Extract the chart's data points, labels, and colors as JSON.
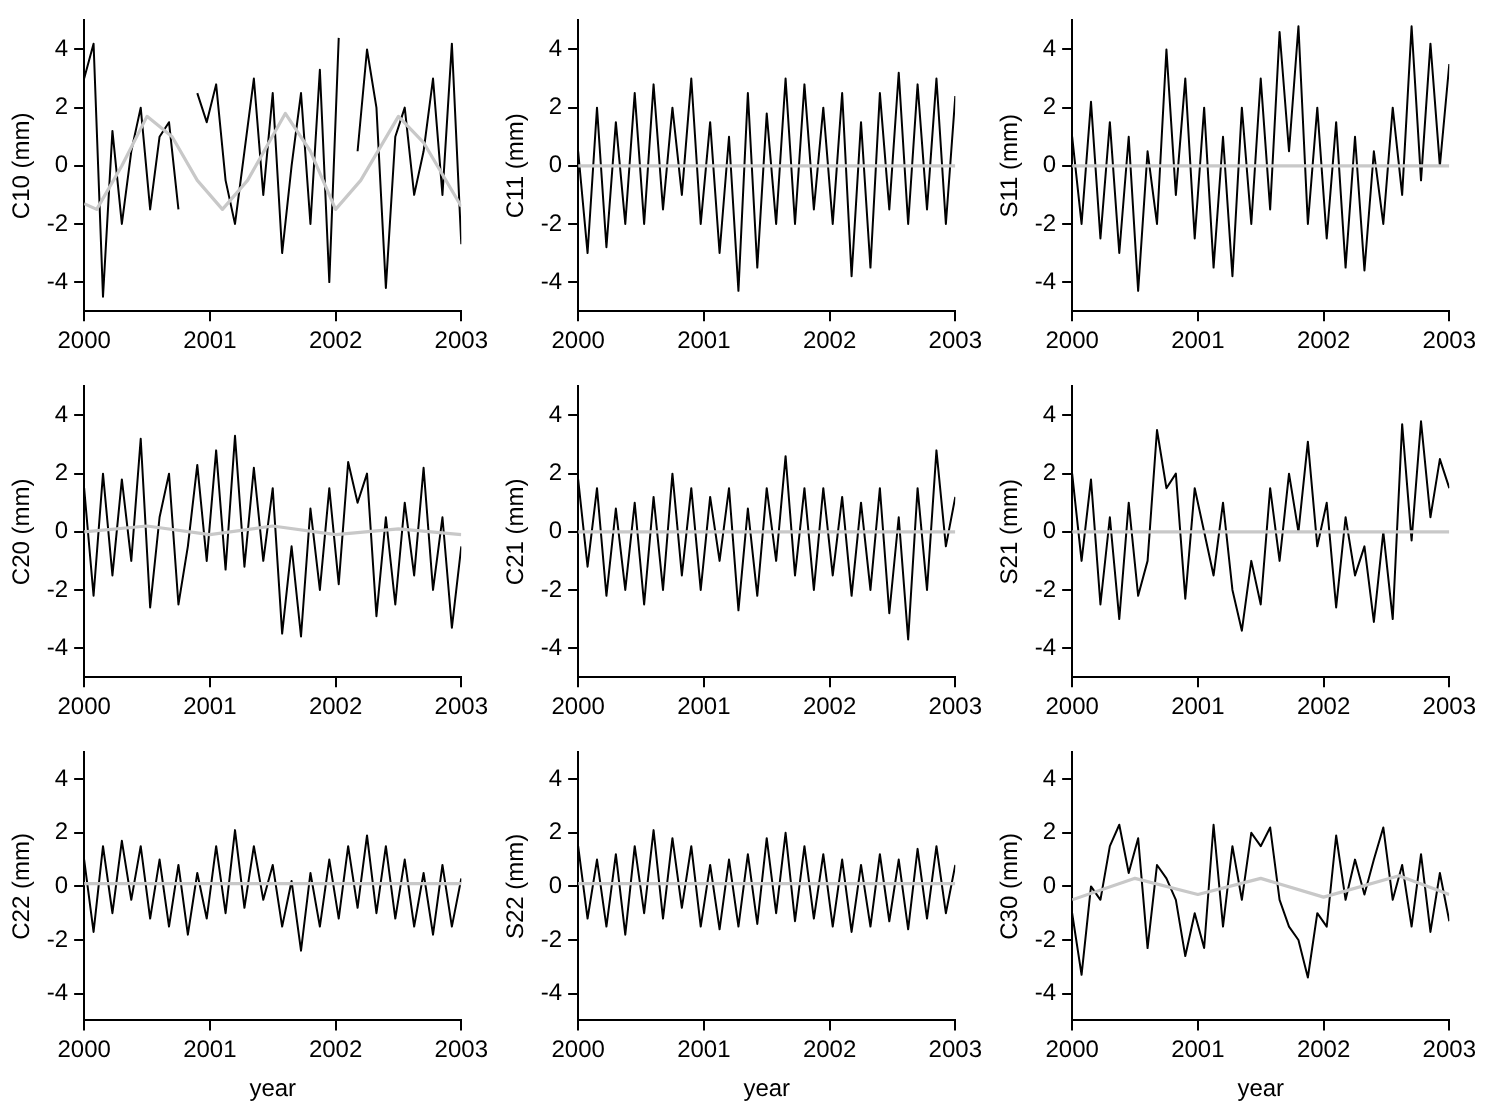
{
  "chart_data": [
    {
      "type": "line",
      "ylabel": "C10 (mm)",
      "xlim": [
        2000,
        2003
      ],
      "ylim": [
        -5,
        5
      ],
      "xticks": [
        2000,
        2001,
        2002,
        2003
      ],
      "yticks": [
        -4,
        -2,
        0,
        2,
        4
      ],
      "marker": "none",
      "x": [
        2000,
        2000.075,
        2000.15,
        2000.225,
        2000.3,
        2000.375,
        2000.45,
        2000.525,
        2000.6,
        2000.675,
        2000.75,
        2000.825,
        2000.9,
        2000.975,
        2001.05,
        2001.125,
        2001.2,
        2001.275,
        2001.35,
        2001.425,
        2001.5,
        2001.575,
        2001.65,
        2001.725,
        2001.8,
        2001.875,
        2001.95,
        2002.025,
        2002.1,
        2002.175,
        2002.25,
        2002.325,
        2002.4,
        2002.475,
        2002.55,
        2002.625,
        2002.7,
        2002.775,
        2002.85,
        2002.925,
        2003
      ],
      "series": [
        {
          "color": "#000000",
          "values": [
            3,
            4.2,
            -4.5,
            1.2,
            -2,
            0.5,
            2,
            -1.5,
            1,
            1.5,
            -1.5,
            null,
            2.5,
            1.5,
            2.8,
            -0.5,
            -2,
            0.5,
            3,
            -1,
            2.5,
            -3,
            0,
            2.5,
            -2,
            3.3,
            -4,
            4.4,
            null,
            0.5,
            4,
            2,
            -4.2,
            1,
            2,
            -1,
            0.5,
            3,
            -1,
            4.2,
            -2.7
          ]
        },
        {
          "color": "#c8c8c8",
          "x": [
            2000,
            2000.1,
            2000.3,
            2000.5,
            2000.7,
            2000.9,
            2001.1,
            2001.3,
            2001.6,
            2001.8,
            2002,
            2002.2,
            2002.5,
            2002.7,
            2003
          ],
          "values": [
            -1.3,
            -1.5,
            0,
            1.7,
            1,
            -0.5,
            -1.5,
            -0.5,
            1.8,
            0.5,
            -1.5,
            -0.5,
            1.7,
            0.8,
            -1.4
          ]
        }
      ]
    },
    {
      "type": "line",
      "ylabel": "C11 (mm)",
      "xlim": [
        2000,
        2003
      ],
      "ylim": [
        -5,
        5
      ],
      "xticks": [
        2000,
        2001,
        2002,
        2003
      ],
      "yticks": [
        -4,
        -2,
        0,
        2,
        4
      ],
      "marker": "none",
      "x": [
        2000,
        2000.075,
        2000.15,
        2000.225,
        2000.3,
        2000.375,
        2000.45,
        2000.525,
        2000.6,
        2000.675,
        2000.75,
        2000.825,
        2000.9,
        2000.975,
        2001.05,
        2001.125,
        2001.2,
        2001.275,
        2001.35,
        2001.425,
        2001.5,
        2001.575,
        2001.65,
        2001.725,
        2001.8,
        2001.875,
        2001.95,
        2002.025,
        2002.1,
        2002.175,
        2002.25,
        2002.325,
        2002.4,
        2002.475,
        2002.55,
        2002.625,
        2002.7,
        2002.775,
        2002.85,
        2002.925,
        2003
      ],
      "series": [
        {
          "color": "#000000",
          "values": [
            0.5,
            -3,
            2,
            -2.8,
            1.5,
            -2,
            2.5,
            -2,
            2.8,
            -1.5,
            2,
            -1,
            3,
            -2,
            1.5,
            -3,
            1,
            -4.3,
            2.5,
            -3.5,
            1.8,
            -2,
            3,
            -2,
            2.8,
            -1.5,
            2,
            -2,
            2.5,
            -3.8,
            1.5,
            -3.5,
            2.5,
            -1.5,
            3.2,
            -2,
            2.8,
            -1.5,
            3,
            -2,
            2.4
          ]
        },
        {
          "color": "#c8c8c8",
          "x": [
            2000,
            2001,
            2002,
            2003
          ],
          "values": [
            0,
            0,
            0,
            0
          ]
        }
      ]
    },
    {
      "type": "line",
      "ylabel": "S11 (mm)",
      "xlim": [
        2000,
        2003
      ],
      "ylim": [
        -5,
        5
      ],
      "xticks": [
        2000,
        2001,
        2002,
        2003
      ],
      "yticks": [
        -4,
        -2,
        0,
        2,
        4
      ],
      "marker": "none",
      "x": [
        2000,
        2000.075,
        2000.15,
        2000.225,
        2000.3,
        2000.375,
        2000.45,
        2000.525,
        2000.6,
        2000.675,
        2000.75,
        2000.825,
        2000.9,
        2000.975,
        2001.05,
        2001.125,
        2001.2,
        2001.275,
        2001.35,
        2001.425,
        2001.5,
        2001.575,
        2001.65,
        2001.725,
        2001.8,
        2001.875,
        2001.95,
        2002.025,
        2002.1,
        2002.175,
        2002.25,
        2002.325,
        2002.4,
        2002.475,
        2002.55,
        2002.625,
        2002.7,
        2002.775,
        2002.85,
        2002.925,
        2003
      ],
      "series": [
        {
          "color": "#000000",
          "values": [
            1,
            -2,
            2.2,
            -2.5,
            1.5,
            -3,
            1,
            -4.3,
            0.5,
            -2,
            4,
            -1,
            3,
            -2.5,
            2,
            -3.5,
            1,
            -3.8,
            2,
            -2,
            3,
            -1.5,
            4.6,
            0.5,
            4.8,
            -2,
            2,
            -2.5,
            1.5,
            -3.5,
            1,
            -3.6,
            0.5,
            -2,
            2,
            -1,
            4.8,
            -0.5,
            4.2,
            0,
            3.5
          ]
        },
        {
          "color": "#c8c8c8",
          "x": [
            2000,
            2001,
            2002,
            2003
          ],
          "values": [
            0,
            0,
            0,
            0
          ]
        }
      ]
    },
    {
      "type": "line",
      "ylabel": "C20 (mm)",
      "xlim": [
        2000,
        2003
      ],
      "ylim": [
        -5,
        5
      ],
      "xticks": [
        2000,
        2001,
        2002,
        2003
      ],
      "yticks": [
        -4,
        -2,
        0,
        2,
        4
      ],
      "marker": "none",
      "x": [
        2000,
        2000.075,
        2000.15,
        2000.225,
        2000.3,
        2000.375,
        2000.45,
        2000.525,
        2000.6,
        2000.675,
        2000.75,
        2000.825,
        2000.9,
        2000.975,
        2001.05,
        2001.125,
        2001.2,
        2001.275,
        2001.35,
        2001.425,
        2001.5,
        2001.575,
        2001.65,
        2001.725,
        2001.8,
        2001.875,
        2001.95,
        2002.025,
        2002.1,
        2002.175,
        2002.25,
        2002.325,
        2002.4,
        2002.475,
        2002.55,
        2002.625,
        2002.7,
        2002.775,
        2002.85,
        2002.925,
        2003
      ],
      "series": [
        {
          "color": "#000000",
          "values": [
            1.5,
            -2.2,
            2,
            -1.5,
            1.8,
            -1,
            3.2,
            -2.6,
            0.5,
            2,
            -2.5,
            -0.5,
            2.3,
            -1,
            2.8,
            -1.3,
            3.3,
            -1.2,
            2.2,
            -1,
            1.5,
            -3.5,
            -0.5,
            -3.6,
            0.8,
            -2,
            1.5,
            -1.8,
            2.4,
            1,
            2,
            -2.9,
            0.5,
            -2.5,
            1,
            -1.5,
            2.2,
            -2,
            0.5,
            -3.3,
            -0.5
          ]
        },
        {
          "color": "#c8c8c8",
          "x": [
            2000,
            2000.5,
            2001,
            2001.5,
            2002,
            2002.5,
            2003
          ],
          "values": [
            0,
            0.2,
            -0.1,
            0.2,
            -0.1,
            0.1,
            -0.1
          ]
        }
      ]
    },
    {
      "type": "line",
      "ylabel": "C21 (mm)",
      "xlim": [
        2000,
        2003
      ],
      "ylim": [
        -5,
        5
      ],
      "xticks": [
        2000,
        2001,
        2002,
        2003
      ],
      "yticks": [
        -4,
        -2,
        0,
        2,
        4
      ],
      "marker": "none",
      "x": [
        2000,
        2000.075,
        2000.15,
        2000.225,
        2000.3,
        2000.375,
        2000.45,
        2000.525,
        2000.6,
        2000.675,
        2000.75,
        2000.825,
        2000.9,
        2000.975,
        2001.05,
        2001.125,
        2001.2,
        2001.275,
        2001.35,
        2001.425,
        2001.5,
        2001.575,
        2001.65,
        2001.725,
        2001.8,
        2001.875,
        2001.95,
        2002.025,
        2002.1,
        2002.175,
        2002.25,
        2002.325,
        2002.4,
        2002.475,
        2002.55,
        2002.625,
        2002.7,
        2002.775,
        2002.85,
        2002.925,
        2003
      ],
      "series": [
        {
          "color": "#000000",
          "values": [
            1.8,
            -1.2,
            1.5,
            -2.2,
            0.8,
            -2,
            1,
            -2.5,
            1.2,
            -2,
            2,
            -1.5,
            1.5,
            -2,
            1.2,
            -1,
            1.5,
            -2.7,
            0.8,
            -2.2,
            1.5,
            -1,
            2.6,
            -1.5,
            1.5,
            -2,
            1.5,
            -1.5,
            1.2,
            -2.2,
            1,
            -2,
            1.5,
            -2.8,
            0.5,
            -3.7,
            1.5,
            -2,
            2.8,
            -0.5,
            1.2
          ]
        },
        {
          "color": "#c8c8c8",
          "x": [
            2000,
            2001,
            2002,
            2003
          ],
          "values": [
            0,
            0,
            0,
            0
          ]
        }
      ]
    },
    {
      "type": "line",
      "ylabel": "S21 (mm)",
      "xlim": [
        2000,
        2003
      ],
      "ylim": [
        -5,
        5
      ],
      "xticks": [
        2000,
        2001,
        2002,
        2003
      ],
      "yticks": [
        -4,
        -2,
        0,
        2,
        4
      ],
      "marker": "none",
      "x": [
        2000,
        2000.075,
        2000.15,
        2000.225,
        2000.3,
        2000.375,
        2000.45,
        2000.525,
        2000.6,
        2000.675,
        2000.75,
        2000.825,
        2000.9,
        2000.975,
        2001.05,
        2001.125,
        2001.2,
        2001.275,
        2001.35,
        2001.425,
        2001.5,
        2001.575,
        2001.65,
        2001.725,
        2001.8,
        2001.875,
        2001.95,
        2002.025,
        2002.1,
        2002.175,
        2002.25,
        2002.325,
        2002.4,
        2002.475,
        2002.55,
        2002.625,
        2002.7,
        2002.775,
        2002.85,
        2002.925,
        2003
      ],
      "series": [
        {
          "color": "#000000",
          "values": [
            2,
            -1,
            1.8,
            -2.5,
            0.5,
            -3,
            1,
            -2.2,
            -1,
            3.5,
            1.5,
            2,
            -2.3,
            1.5,
            0,
            -1.5,
            1,
            -2,
            -3.4,
            -1,
            -2.5,
            1.5,
            -1,
            2,
            0,
            3.1,
            -0.5,
            1,
            -2.6,
            0.5,
            -1.5,
            -0.5,
            -3.1,
            0,
            -3,
            3.7,
            -0.3,
            3.8,
            0.5,
            2.5,
            1.5
          ]
        },
        {
          "color": "#c8c8c8",
          "x": [
            2000,
            2001,
            2002,
            2003
          ],
          "values": [
            0,
            0,
            0,
            0
          ]
        }
      ]
    },
    {
      "type": "line",
      "ylabel": "C22 (mm)",
      "xlabel": "year",
      "xlim": [
        2000,
        2003
      ],
      "ylim": [
        -5,
        5
      ],
      "xticks": [
        2000,
        2001,
        2002,
        2003
      ],
      "yticks": [
        -4,
        -2,
        0,
        2,
        4
      ],
      "marker": "none",
      "x": [
        2000,
        2000.075,
        2000.15,
        2000.225,
        2000.3,
        2000.375,
        2000.45,
        2000.525,
        2000.6,
        2000.675,
        2000.75,
        2000.825,
        2000.9,
        2000.975,
        2001.05,
        2001.125,
        2001.2,
        2001.275,
        2001.35,
        2001.425,
        2001.5,
        2001.575,
        2001.65,
        2001.725,
        2001.8,
        2001.875,
        2001.95,
        2002.025,
        2002.1,
        2002.175,
        2002.25,
        2002.325,
        2002.4,
        2002.475,
        2002.55,
        2002.625,
        2002.7,
        2002.775,
        2002.85,
        2002.925,
        2003
      ],
      "series": [
        {
          "color": "#000000",
          "values": [
            1,
            -1.7,
            1.5,
            -1,
            1.7,
            -0.5,
            1.5,
            -1.2,
            1,
            -1.5,
            0.8,
            -1.8,
            0.5,
            -1.2,
            1.5,
            -1,
            2.1,
            -0.8,
            1.5,
            -0.5,
            0.8,
            -1.5,
            0.2,
            -2.4,
            0.5,
            -1.5,
            1,
            -1.2,
            1.5,
            -0.8,
            1.9,
            -1,
            1.5,
            -1.2,
            1,
            -1.5,
            0.5,
            -1.8,
            0.8,
            -1.5,
            0.3
          ]
        },
        {
          "color": "#c8c8c8",
          "x": [
            2000,
            2001,
            2002,
            2003
          ],
          "values": [
            0.1,
            0.1,
            0.1,
            0.1
          ]
        }
      ]
    },
    {
      "type": "line",
      "ylabel": "S22 (mm)",
      "xlabel": "year",
      "xlim": [
        2000,
        2003
      ],
      "ylim": [
        -5,
        5
      ],
      "xticks": [
        2000,
        2001,
        2002,
        2003
      ],
      "yticks": [
        -4,
        -2,
        0,
        2,
        4
      ],
      "marker": "none",
      "x": [
        2000,
        2000.075,
        2000.15,
        2000.225,
        2000.3,
        2000.375,
        2000.45,
        2000.525,
        2000.6,
        2000.675,
        2000.75,
        2000.825,
        2000.9,
        2000.975,
        2001.05,
        2001.125,
        2001.2,
        2001.275,
        2001.35,
        2001.425,
        2001.5,
        2001.575,
        2001.65,
        2001.725,
        2001.8,
        2001.875,
        2001.95,
        2002.025,
        2002.1,
        2002.175,
        2002.25,
        2002.325,
        2002.4,
        2002.475,
        2002.55,
        2002.625,
        2002.7,
        2002.775,
        2002.85,
        2002.925,
        2003
      ],
      "series": [
        {
          "color": "#000000",
          "values": [
            1.5,
            -1.2,
            1,
            -1.5,
            1.2,
            -1.8,
            1.5,
            -1,
            2.1,
            -1.2,
            1.8,
            -0.8,
            1.5,
            -1.5,
            0.8,
            -1.6,
            1,
            -1.5,
            1.2,
            -1.4,
            1.8,
            -1,
            2,
            -1.3,
            1.5,
            -1.2,
            1.2,
            -1.5,
            1,
            -1.7,
            0.8,
            -1.5,
            1.2,
            -1.3,
            1,
            -1.6,
            1.4,
            -1.2,
            1.5,
            -1,
            0.8
          ]
        },
        {
          "color": "#c8c8c8",
          "x": [
            2000,
            2001,
            2002,
            2003
          ],
          "values": [
            0.1,
            0.1,
            0.1,
            0.1
          ]
        }
      ]
    },
    {
      "type": "line",
      "ylabel": "C30 (mm)",
      "xlabel": "year",
      "xlim": [
        2000,
        2003
      ],
      "ylim": [
        -5,
        5
      ],
      "xticks": [
        2000,
        2001,
        2002,
        2003
      ],
      "yticks": [
        -4,
        -2,
        0,
        2,
        4
      ],
      "marker": "none",
      "x": [
        2000,
        2000.075,
        2000.15,
        2000.225,
        2000.3,
        2000.375,
        2000.45,
        2000.525,
        2000.6,
        2000.675,
        2000.75,
        2000.825,
        2000.9,
        2000.975,
        2001.05,
        2001.125,
        2001.2,
        2001.275,
        2001.35,
        2001.425,
        2001.5,
        2001.575,
        2001.65,
        2001.725,
        2001.8,
        2001.875,
        2001.95,
        2002.025,
        2002.1,
        2002.175,
        2002.25,
        2002.325,
        2002.4,
        2002.475,
        2002.55,
        2002.625,
        2002.7,
        2002.775,
        2002.85,
        2002.925,
        2003
      ],
      "series": [
        {
          "color": "#000000",
          "values": [
            -1,
            -3.3,
            0,
            -0.5,
            1.5,
            2.3,
            0.5,
            1.8,
            -2.3,
            0.8,
            0.3,
            -0.5,
            -2.6,
            -1,
            -2.3,
            2.3,
            -1.5,
            1.5,
            -0.5,
            2,
            1.5,
            2.2,
            -0.5,
            -1.5,
            -2,
            -3.4,
            -1,
            -1.5,
            1.9,
            -0.5,
            1,
            -0.3,
            1,
            2.2,
            -0.5,
            0.8,
            -1.5,
            1.2,
            -1.7,
            0.5,
            -1.3
          ]
        },
        {
          "color": "#c8c8c8",
          "x": [
            2000,
            2000.5,
            2001,
            2001.5,
            2002,
            2002.6,
            2003
          ],
          "values": [
            -0.5,
            0.3,
            -0.3,
            0.3,
            -0.4,
            0.4,
            -0.3
          ]
        }
      ]
    }
  ]
}
